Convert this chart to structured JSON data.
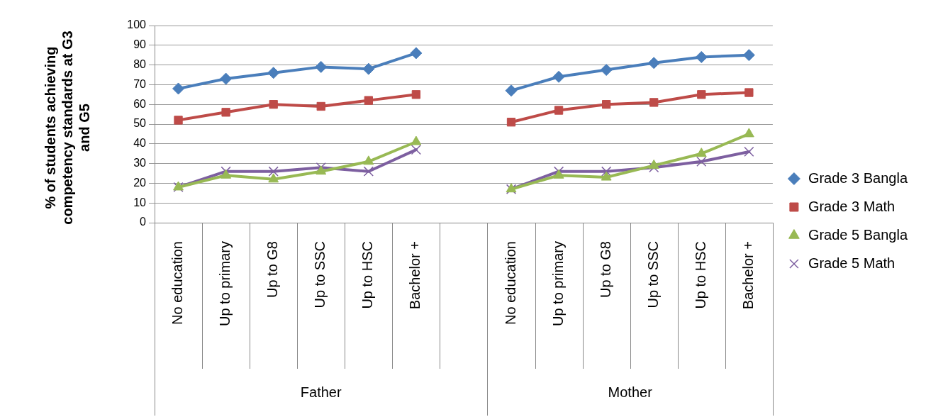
{
  "chart_data": {
    "type": "line",
    "ylabel": "% of students achieving competency standards at G3 and G5",
    "categories": [
      "No education",
      "Up to primary",
      "Up to G8",
      "Up to SSC",
      "Up to HSC",
      "Bachelor +",
      null,
      "No education",
      "Up to primary",
      "Up to G8",
      "Up to SSC",
      "Up to HSC",
      "Bachelor +"
    ],
    "series": [
      {
        "name": "Grade 3 Bangla",
        "color": "#4a7ebb",
        "marker": "diamond",
        "values": [
          68,
          73,
          76,
          79,
          78,
          86,
          null,
          67,
          74,
          77.5,
          81,
          84,
          85
        ]
      },
      {
        "name": "Grade 3 Math",
        "color": "#be4b48",
        "marker": "square",
        "values": [
          52,
          56,
          60,
          59,
          62,
          65,
          null,
          51,
          57,
          60,
          61,
          65,
          66
        ]
      },
      {
        "name": "Grade 5 Bangla",
        "color": "#98b954",
        "marker": "triangle",
        "values": [
          18,
          24,
          22,
          26,
          31,
          41,
          null,
          17,
          24,
          23,
          29,
          35,
          45
        ]
      },
      {
        "name": "Grade 5 Math",
        "color": "#7d5fa0",
        "marker": "cross",
        "values": [
          18,
          26,
          26,
          28,
          26,
          37,
          null,
          17,
          26,
          26,
          28,
          31,
          36
        ]
      }
    ],
    "annotations": [
      "Father",
      "Mother"
    ],
    "ylim": [
      0,
      100
    ],
    "yticks": [
      0,
      10,
      20,
      30,
      40,
      50,
      60,
      70,
      80,
      90,
      100
    ],
    "grid": "y",
    "legend": "right",
    "line_style": "solid"
  }
}
